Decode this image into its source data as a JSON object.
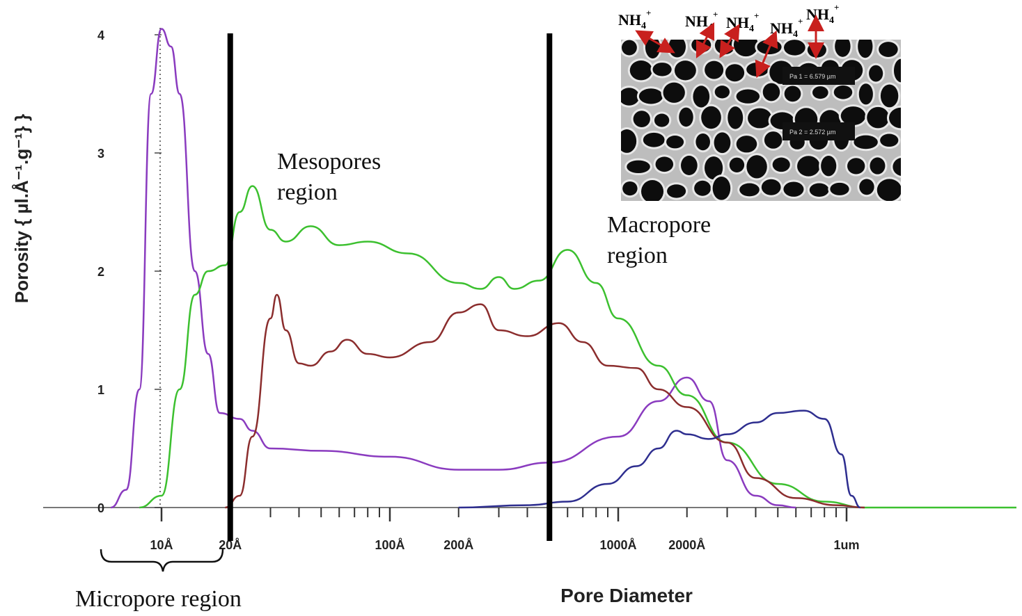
{
  "chart_data": {
    "type": "line",
    "xlabel": "Pore Diameter",
    "ylabel": "Porosity { µl.Å⁻¹.g⁻¹} }",
    "x_scale": "log",
    "x_unit": "Å",
    "xlim": [
      5,
      30000
    ],
    "ylim": [
      0,
      4.1
    ],
    "y_ticks": [
      {
        "value": 0,
        "label": "0"
      },
      {
        "value": 1,
        "label": "1"
      },
      {
        "value": 2,
        "label": "2"
      },
      {
        "value": 3,
        "label": "3"
      },
      {
        "value": 4,
        "label": "4"
      }
    ],
    "x_ticks": [
      {
        "value": 10,
        "label": "10Å"
      },
      {
        "value": 20,
        "label": "20Å"
      },
      {
        "value": 100,
        "label": "100Å"
      },
      {
        "value": 200,
        "label": "200Å"
      },
      {
        "value": 1000,
        "label": "1000Å"
      },
      {
        "value": 2000,
        "label": "2000Å"
      },
      {
        "value": 10000,
        "label": "1um"
      }
    ],
    "series": [
      {
        "color": "#8a3bbf",
        "points": [
          [
            6,
            0
          ],
          [
            7,
            0.15
          ],
          [
            8,
            1.0
          ],
          [
            9,
            3.5
          ],
          [
            10,
            4.05
          ],
          [
            11,
            3.9
          ],
          [
            12,
            3.5
          ],
          [
            14,
            2.0
          ],
          [
            16,
            1.3
          ],
          [
            18,
            0.8
          ],
          [
            22,
            0.75
          ],
          [
            25,
            0.65
          ],
          [
            30,
            0.5
          ],
          [
            50,
            0.48
          ],
          [
            100,
            0.43
          ],
          [
            200,
            0.32
          ],
          [
            300,
            0.32
          ],
          [
            500,
            0.38
          ],
          [
            1000,
            0.6
          ],
          [
            1500,
            0.9
          ],
          [
            2000,
            1.1
          ],
          [
            2500,
            0.9
          ],
          [
            3000,
            0.4
          ],
          [
            4000,
            0.1
          ],
          [
            5000,
            0.02
          ],
          [
            6000,
            0
          ]
        ]
      },
      {
        "color": "#3cc02f",
        "points": [
          [
            8,
            0
          ],
          [
            10,
            0.1
          ],
          [
            12,
            1.0
          ],
          [
            14,
            1.8
          ],
          [
            16,
            2.0
          ],
          [
            19,
            2.05
          ],
          [
            22,
            2.5
          ],
          [
            25,
            2.72
          ],
          [
            30,
            2.35
          ],
          [
            35,
            2.25
          ],
          [
            45,
            2.38
          ],
          [
            60,
            2.22
          ],
          [
            80,
            2.25
          ],
          [
            120,
            2.15
          ],
          [
            200,
            1.9
          ],
          [
            250,
            1.85
          ],
          [
            300,
            1.95
          ],
          [
            350,
            1.85
          ],
          [
            450,
            1.92
          ],
          [
            600,
            2.18
          ],
          [
            800,
            1.9
          ],
          [
            1000,
            1.6
          ],
          [
            1500,
            1.2
          ],
          [
            2000,
            0.95
          ],
          [
            3000,
            0.55
          ],
          [
            5000,
            0.2
          ],
          [
            8000,
            0.05
          ],
          [
            12000,
            0
          ],
          [
            15000,
            0
          ]
        ]
      },
      {
        "color": "#8b2d2d",
        "points": [
          [
            19,
            0
          ],
          [
            22,
            0.1
          ],
          [
            25,
            0.6
          ],
          [
            30,
            1.6
          ],
          [
            32,
            1.8
          ],
          [
            35,
            1.5
          ],
          [
            40,
            1.22
          ],
          [
            45,
            1.2
          ],
          [
            55,
            1.32
          ],
          [
            65,
            1.42
          ],
          [
            80,
            1.3
          ],
          [
            100,
            1.27
          ],
          [
            150,
            1.4
          ],
          [
            200,
            1.65
          ],
          [
            250,
            1.72
          ],
          [
            300,
            1.5
          ],
          [
            400,
            1.45
          ],
          [
            550,
            1.56
          ],
          [
            700,
            1.4
          ],
          [
            900,
            1.2
          ],
          [
            1200,
            1.18
          ],
          [
            1500,
            1.0
          ],
          [
            2000,
            0.85
          ],
          [
            3000,
            0.55
          ],
          [
            4000,
            0.25
          ],
          [
            6000,
            0.08
          ],
          [
            9000,
            0.02
          ],
          [
            12000,
            0
          ]
        ]
      },
      {
        "color": "#2e2e8f",
        "points": [
          [
            200,
            0
          ],
          [
            400,
            0.02
          ],
          [
            600,
            0.05
          ],
          [
            900,
            0.2
          ],
          [
            1200,
            0.35
          ],
          [
            1500,
            0.5
          ],
          [
            1800,
            0.65
          ],
          [
            2000,
            0.62
          ],
          [
            2500,
            0.58
          ],
          [
            3000,
            0.62
          ],
          [
            4000,
            0.72
          ],
          [
            5000,
            0.8
          ],
          [
            6500,
            0.82
          ],
          [
            8000,
            0.75
          ],
          [
            9500,
            0.45
          ],
          [
            10500,
            0.1
          ],
          [
            11500,
            0
          ]
        ]
      }
    ],
    "annotations": [
      {
        "text_lines": [
          "Mesopores",
          "region"
        ]
      },
      {
        "text_lines": [
          "Macropore",
          "region"
        ]
      },
      {
        "text_lines": [
          "Micropore region"
        ]
      }
    ],
    "region_boundaries_x": [
      20,
      500
    ],
    "inset": {
      "scale_labels": [
        "Pa 1 = 6.579 µm",
        "Pa 2 = 2.572 µm"
      ],
      "ion_label": "NH",
      "ion_subscript": "4",
      "ion_superscript": "+",
      "arrow_color": "#c8201e"
    }
  }
}
